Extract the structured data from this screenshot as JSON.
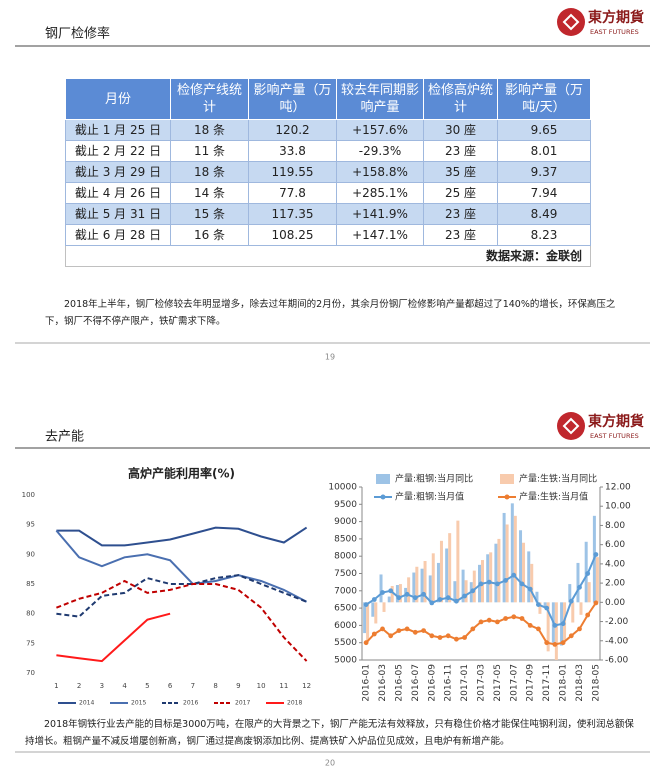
{
  "pages": [
    {
      "header": {
        "title": "钢厂检修率",
        "logo": "東方期貨",
        "logo_sub": "EAST FUTURES"
      },
      "table": {
        "header": [
          "月份",
          "检修产线统计",
          "影响产量（万吨）",
          "较去年同期影响产量",
          "检修高炉统计",
          "影响产量（万吨/天）"
        ],
        "rows": [
          [
            "截止 1 月 25 日",
            "18 条",
            "120.2",
            "+157.6%",
            "30 座",
            "9.65"
          ],
          [
            "截止 2 月 22 日",
            "11 条",
            "33.8",
            "-29.3%",
            "23 座",
            "8.01"
          ],
          [
            "截止 3 月 29 日",
            "18 条",
            "119.55",
            "+158.8%",
            "35 座",
            "9.37"
          ],
          [
            "截止 4 月 26 日",
            "14 条",
            "77.8",
            "+285.1%",
            "25 座",
            "7.94"
          ],
          [
            "截止 5 月 31 日",
            "15 条",
            "117.35",
            "+141.9%",
            "23 座",
            "8.49"
          ],
          [
            "截止 6 月 28 日",
            "16 条",
            "108.25",
            "+147.1%",
            "23 座",
            "8.23"
          ]
        ],
        "source": "数据来源：金联创"
      },
      "paragraph": "2018年上半年，钢厂检修较去年明显增多，除去过年期间的2月份，其余月份钢厂检修影响产量都超过了140%的增长，环保高压之下，钢厂不得不停产限产，铁矿需求下降。",
      "page_number": "19"
    },
    {
      "header": {
        "title": "去产能",
        "logo": "東方期貨",
        "logo_sub": "EAST FUTURES"
      },
      "paragraph": "2018年钢铁行业去产能的目标是3000万吨，在限产的大背景之下，钢厂产能无法有效释放，只有稳住价格才能保住吨钢利润，使利润总额保持增长。粗钢产量不减反增屡创新高，钢厂通过提高废钢添加比例、提高铁矿入炉品位见成效，且电炉有新增产能。",
      "page_number": "20"
    }
  ],
  "chart_data": [
    {
      "type": "line",
      "title": "高炉产能利用率(%)",
      "x": [
        1,
        2,
        3,
        4,
        5,
        6,
        7,
        8,
        9,
        10,
        11,
        12
      ],
      "xlim": [
        0.5,
        12.5
      ],
      "xticks": [
        1,
        2,
        3,
        4,
        5,
        6,
        7,
        8,
        9,
        10,
        11,
        12
      ],
      "ylim": [
        70,
        100
      ],
      "yticks": [
        70,
        75,
        80,
        85,
        90,
        95,
        100
      ],
      "legend": "bottom",
      "series": [
        {
          "name": "2014",
          "color": "#2e4f8f",
          "dash": false,
          "values": [
            94,
            94,
            91.5,
            91.5,
            92,
            92.5,
            93.5,
            94.5,
            94.3,
            93,
            92,
            94.5
          ]
        },
        {
          "name": "2015",
          "color": "#4a6fb0",
          "dash": false,
          "values": [
            94,
            89.5,
            88,
            89.5,
            90,
            89,
            85,
            85.5,
            86.5,
            85.5,
            84,
            82
          ]
        },
        {
          "name": "2016",
          "color": "#1f3a70",
          "dash": true,
          "values": [
            80,
            79.5,
            83,
            83.5,
            86,
            85,
            85,
            86,
            86.5,
            85,
            83.5,
            82
          ]
        },
        {
          "name": "2017",
          "color": "#c00000",
          "dash": true,
          "values": [
            81,
            82.5,
            83.5,
            85.5,
            83.5,
            84,
            85,
            85,
            84,
            81,
            76,
            72
          ]
        },
        {
          "name": "2018",
          "color": "#ff1a1a",
          "dash": false,
          "values": [
            73,
            72.5,
            72,
            75.5,
            79,
            80,
            null,
            null,
            null,
            null,
            null,
            null
          ]
        }
      ]
    },
    {
      "type": "combo",
      "categories": [
        "2016-01",
        null,
        "2016-03",
        null,
        "2016-05",
        null,
        "2016-07",
        null,
        "2016-09",
        null,
        "2016-11",
        null,
        "2017-01",
        null,
        "2017-03",
        null,
        "2017-05",
        null,
        "2017-07",
        null,
        "2017-09",
        null,
        "2017-11",
        null,
        "2018-01",
        null,
        "2018-03",
        null,
        "2018-05"
      ],
      "ylim": [
        5000,
        10000
      ],
      "yticks": [
        5000,
        5500,
        6000,
        6500,
        7000,
        7500,
        8000,
        8500,
        9000,
        9500,
        10000
      ],
      "y2lim": [
        -6,
        12
      ],
      "y2ticks": [
        {
          "value": -6,
          "label": "-6.00"
        },
        {
          "value": -4,
          "label": "-4.00"
        },
        {
          "value": -2,
          "label": "-2.00"
        },
        {
          "value": 0,
          "label": "0.00"
        },
        {
          "value": 2,
          "label": "2.00"
        },
        {
          "value": 4,
          "label": "4.00"
        },
        {
          "value": 6,
          "label": "6.00"
        },
        {
          "value": 8,
          "label": "8.00"
        },
        {
          "value": 10,
          "label": "10.00"
        },
        {
          "value": 12,
          "label": "12.00"
        }
      ],
      "legend": "top",
      "series": [
        {
          "name": "产量:粗钢:当月同比",
          "kind": "bar",
          "axis": "y2",
          "color": "#9dc3e6",
          "values": [
            -3.2,
            -1.5,
            2.9,
            0.6,
            1.8,
            1.5,
            3.1,
            3.5,
            2.8,
            4.1,
            5.6,
            2.2,
            3.4,
            2.1,
            3.9,
            5.0,
            6.1,
            9.3,
            10.3,
            7.5,
            5.3,
            1.1,
            -0.6,
            -4.2,
            -4.5,
            1.9,
            4.1,
            6.3,
            9.0
          ]
        },
        {
          "name": "产量:生铁:当月同比",
          "kind": "bar",
          "axis": "y2",
          "color": "#f8cbad",
          "values": [
            -4.1,
            -2.2,
            -1.0,
            1.7,
            1.9,
            2.6,
            3.7,
            4.3,
            5.1,
            6.4,
            7.2,
            8.5,
            2.3,
            3.3,
            4.4,
            5.2,
            6.6,
            8.1,
            9.0,
            6.2,
            4.0,
            -1.2,
            -5.1,
            -6.0,
            -4.0,
            -2.1,
            -1.3,
            2.1,
            4.7
          ]
        },
        {
          "name": "产量:粗钢:当月值",
          "kind": "line",
          "marker": true,
          "color": "#5b9bd5",
          "values": [
            6600,
            6750,
            6950,
            7000,
            6800,
            6900,
            6800,
            6900,
            6650,
            6750,
            6800,
            6700,
            6850,
            7000,
            7200,
            7250,
            7200,
            7300,
            7450,
            7200,
            7050,
            6600,
            6500,
            6000,
            6050,
            6700,
            7100,
            7500,
            8050
          ]
        },
        {
          "name": "产量:生铁:当月值",
          "kind": "line",
          "marker": true,
          "color": "#ed7d31",
          "values": [
            5500,
            5750,
            5900,
            5700,
            5850,
            5900,
            5800,
            5850,
            5700,
            5650,
            5700,
            5600,
            5650,
            5900,
            6100,
            6150,
            6100,
            6200,
            6250,
            6200,
            6000,
            5900,
            5500,
            5450,
            5500,
            5700,
            5900,
            6300,
            6650
          ]
        }
      ]
    }
  ]
}
